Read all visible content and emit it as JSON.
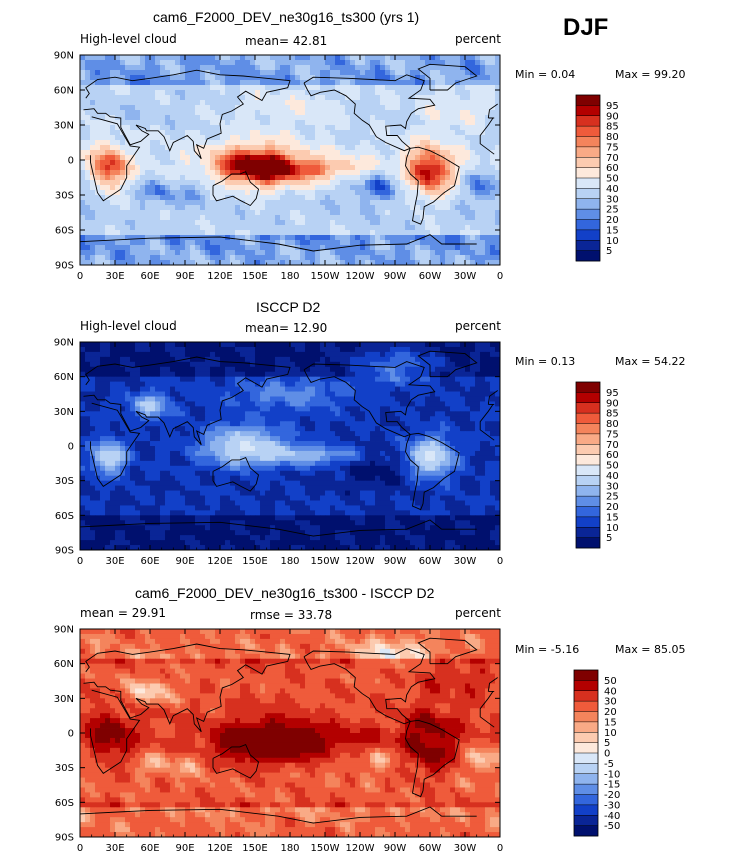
{
  "header": {
    "season": "DJF"
  },
  "x_ticks": [
    "0",
    "30E",
    "60E",
    "90E",
    "120E",
    "150E",
    "180",
    "150W",
    "120W",
    "90W",
    "60W",
    "30W",
    "0"
  ],
  "y_ticks": [
    "90N",
    "60N",
    "30N",
    "0",
    "30S",
    "60S",
    "90S"
  ],
  "chart_data": [
    {
      "type": "heatmap",
      "title": "cam6_F2000_DEV_ne30g16_ts300 (yrs 1)",
      "left_label": "High-level cloud",
      "center_label": "mean=  42.81",
      "right_label": "percent",
      "min_label": "Min =   0.04",
      "max_label": "Max =  99.20",
      "min": 0.04,
      "max": 99.2,
      "mean": 42.81,
      "xlim": [
        0,
        360
      ],
      "ylim": [
        -90,
        90
      ],
      "colorbar": [
        "95",
        "90",
        "85",
        "80",
        "75",
        "70",
        "60",
        "50",
        "40",
        "30",
        "25",
        "20",
        "15",
        "10",
        "5"
      ],
      "colors": [
        "#7f0000",
        "#b30000",
        "#d7301f",
        "#ef5b3b",
        "#f4845c",
        "#f9aa86",
        "#fccbb0",
        "#fde9dc",
        "#d9e7f8",
        "#b8d2f4",
        "#8fb4ee",
        "#5f8ee6",
        "#3366dd",
        "#1240c8",
        "#0a2596",
        "#00106e"
      ]
    },
    {
      "type": "heatmap",
      "title": "ISCCP D2",
      "left_label": "High-level cloud",
      "center_label": "mean=  12.90",
      "right_label": "percent",
      "min_label": "Min =   0.13",
      "max_label": "Max =  54.22",
      "min": 0.13,
      "max": 54.22,
      "mean": 12.9,
      "xlim": [
        0,
        360
      ],
      "ylim": [
        -90,
        90
      ],
      "colorbar": [
        "95",
        "90",
        "85",
        "80",
        "75",
        "70",
        "60",
        "50",
        "40",
        "30",
        "25",
        "20",
        "15",
        "10",
        "5"
      ],
      "colors": [
        "#7f0000",
        "#b30000",
        "#d7301f",
        "#ef5b3b",
        "#f4845c",
        "#f9aa86",
        "#fccbb0",
        "#fde9dc",
        "#d9e7f8",
        "#b8d2f4",
        "#8fb4ee",
        "#5f8ee6",
        "#3366dd",
        "#1240c8",
        "#0a2596",
        "#00106e"
      ]
    },
    {
      "type": "heatmap",
      "title": "cam6_F2000_DEV_ne30g16_ts300 - ISCCP D2",
      "left_label": "mean =   29.91",
      "center_label": "rmse =   33.78",
      "right_label": "percent",
      "min_label": "Min =  -5.16",
      "max_label": "Max =  85.05",
      "min": -5.16,
      "max": 85.05,
      "mean": 29.91,
      "rmse": 33.78,
      "xlim": [
        0,
        360
      ],
      "ylim": [
        -90,
        90
      ],
      "colorbar": [
        "50",
        "40",
        "30",
        "20",
        "15",
        "10",
        "5",
        "0",
        "-5",
        "-10",
        "-15",
        "-20",
        "-30",
        "-40",
        "-50"
      ],
      "colors": [
        "#7f0000",
        "#b30000",
        "#d7301f",
        "#ef5b3b",
        "#f4845c",
        "#f9aa86",
        "#fccbb0",
        "#fde9dc",
        "#d9e7f8",
        "#b8d2f4",
        "#8fb4ee",
        "#5f8ee6",
        "#3366dd",
        "#1240c8",
        "#0a2596",
        "#00106e"
      ]
    }
  ]
}
